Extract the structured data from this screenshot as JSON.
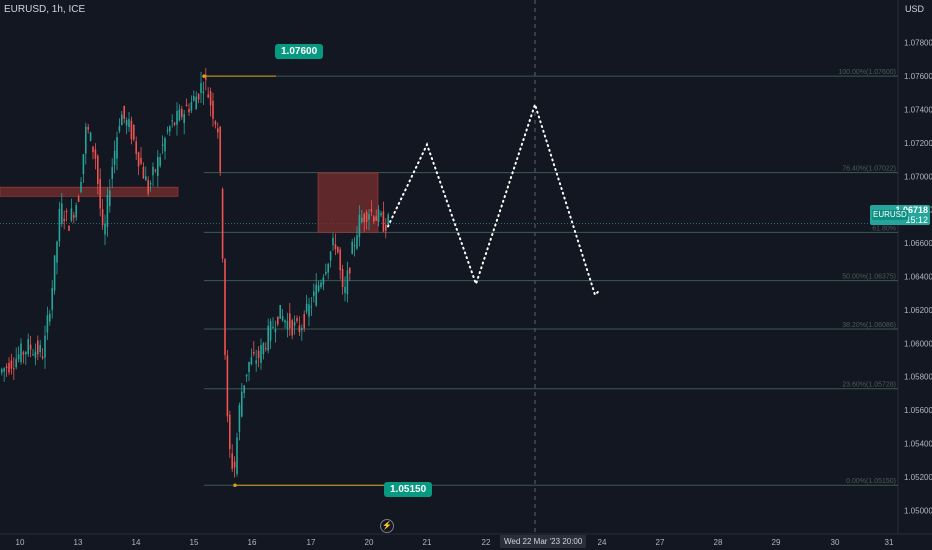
{
  "header": {
    "symbol": "EURUSD, 1h, ICE",
    "currency": "USD"
  },
  "labels": {
    "high_tag": "1.07600",
    "low_tag": "1.05150",
    "current_price": "1.06718",
    "current_symbol": "EURUSD",
    "countdown": "15:12",
    "crosshair_time": "Wed 22 Mar '23",
    "crosshair_hour": "20:00"
  },
  "colors": {
    "background": "#131722",
    "up": "#26a69a",
    "down": "#ef5350",
    "fib_line": "#3a5a52",
    "zone": "#7a2f2f",
    "level_tag": "#089981",
    "high_low_line": "#d4a017"
  },
  "icons": [
    "lightning-icon"
  ],
  "chart_data": {
    "type": "candlestick",
    "title": "EURUSD, 1h, ICE",
    "ylabel": "USD",
    "ylim": [
      1.0487,
      1.0796
    ],
    "y_ticks": [
      "1.07800",
      "1.07600",
      "1.07400",
      "1.07200",
      "1.07000",
      "1.06800",
      "1.06600",
      "1.06400",
      "1.06200",
      "1.06000",
      "1.05800",
      "1.05600",
      "1.05400",
      "1.05200",
      "1.05000"
    ],
    "x_ticks": [
      "10",
      "13",
      "14",
      "15",
      "16",
      "17",
      "20",
      "21",
      "22",
      "Wed 22 Mar '23  20:00",
      "24",
      "27",
      "28",
      "29",
      "30",
      "31"
    ],
    "fibonacci": [
      {
        "label": "100.00%(1.07600)",
        "value": 1.076
      },
      {
        "label": "76.40%(1.07022)",
        "value": 1.07022
      },
      {
        "label": "61.80%",
        "value": 1.06664
      },
      {
        "label": "50.00%(1.06375)",
        "value": 1.06375
      },
      {
        "label": "38.20%(1.06086)",
        "value": 1.06086
      },
      {
        "label": "23.60%(1.05728)",
        "value": 1.05728
      },
      {
        "label": "0.00%(1.05150)",
        "value": 1.0515
      }
    ],
    "key_levels": [
      {
        "label": "1.07600",
        "value": 1.076
      },
      {
        "label": "1.05150",
        "value": 1.0515
      }
    ],
    "current_price": 1.06718,
    "zones": [
      {
        "name": "supply-zone-left",
        "from_value": 1.06935,
        "to_value": 1.0688
      },
      {
        "name": "supply-zone-right",
        "from_value": 1.0702,
        "to_value": 1.06665
      }
    ],
    "projection_path": [
      1.067,
      1.0719,
      1.06355,
      1.0743,
      1.0629,
      1.0632
    ]
  }
}
